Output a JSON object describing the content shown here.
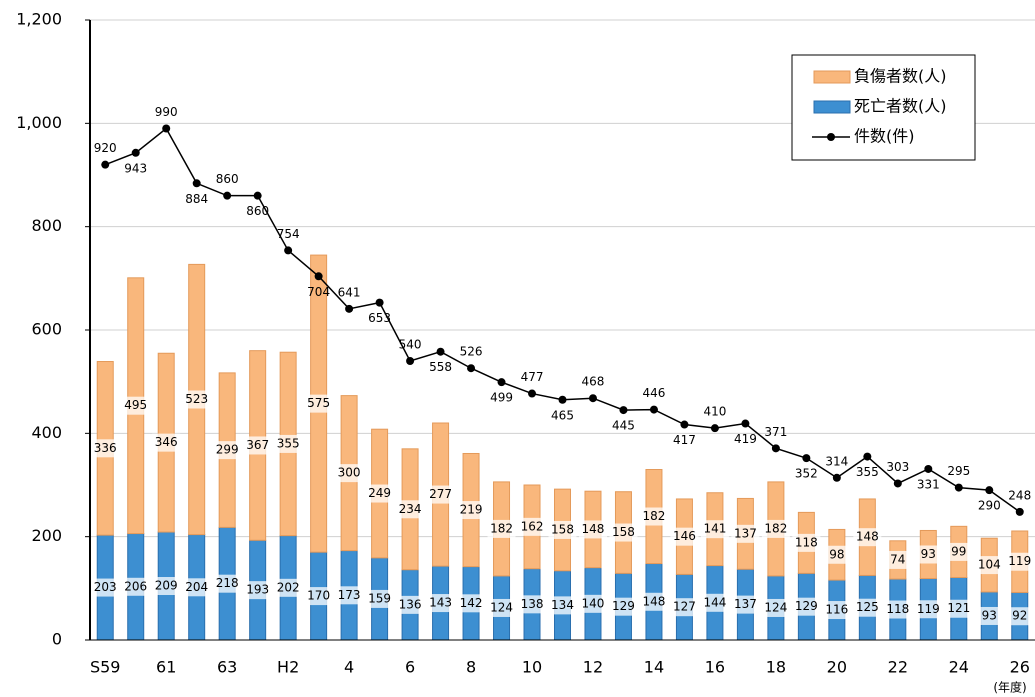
{
  "chart_data": {
    "type": "bar",
    "stacked": true,
    "categories": [
      "S59",
      null,
      "61",
      null,
      "63",
      null,
      "H2",
      null,
      "4",
      null,
      "6",
      null,
      "8",
      null,
      "10",
      null,
      "12",
      null,
      "14",
      null,
      "16",
      null,
      "18",
      null,
      "20",
      null,
      "22",
      null,
      "24",
      null,
      "26"
    ],
    "x_label": "(年度)",
    "series": [
      {
        "name": "死亡者数(人)",
        "color": "#3d8fd1",
        "values": [
          203,
          206,
          209,
          204,
          218,
          193,
          202,
          170,
          173,
          159,
          136,
          143,
          142,
          124,
          138,
          134,
          140,
          129,
          148,
          127,
          144,
          137,
          124,
          129,
          116,
          125,
          118,
          119,
          121,
          93,
          92
        ]
      },
      {
        "name": "負傷者数(人)",
        "color": "#f9b77c",
        "values": [
          336,
          495,
          346,
          523,
          299,
          367,
          355,
          575,
          300,
          249,
          234,
          277,
          219,
          182,
          162,
          158,
          148,
          158,
          182,
          146,
          141,
          137,
          182,
          118,
          98,
          148,
          74,
          93,
          99,
          104,
          119
        ]
      },
      {
        "name": "件数(件)",
        "type": "line",
        "color": "#000000",
        "values": [
          920,
          943,
          990,
          884,
          860,
          860,
          754,
          704,
          641,
          653,
          540,
          558,
          526,
          499,
          477,
          465,
          468,
          445,
          446,
          417,
          410,
          419,
          371,
          352,
          314,
          355,
          303,
          331,
          295,
          290,
          248
        ]
      }
    ],
    "ylim": [
      0,
      1200
    ],
    "yticks": [
      0,
      200,
      400,
      600,
      800,
      {
        "value": 1000,
        "label": "1,000"
      },
      {
        "value": 1200,
        "label": "1,200"
      }
    ],
    "grid": true,
    "legend": "upper right"
  }
}
